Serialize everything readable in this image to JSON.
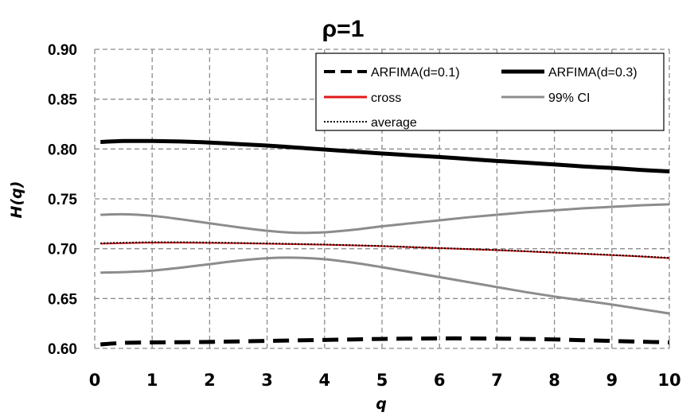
{
  "chart_data": {
    "type": "line",
    "title": "ρ=1",
    "xlabel": "q",
    "ylabel": "H(q)",
    "xlim": [
      0,
      10
    ],
    "ylim": [
      0.6,
      0.9
    ],
    "xticks": [
      "0",
      "1",
      "2",
      "3",
      "4",
      "5",
      "6",
      "7",
      "8",
      "9",
      "10"
    ],
    "yticks": [
      "0.60",
      "0.65",
      "0.70",
      "0.75",
      "0.80",
      "0.85",
      "0.90"
    ],
    "grid": true,
    "legend_position": "top-right",
    "x": [
      0.1,
      0.5,
      1,
      1.5,
      2,
      2.5,
      3,
      3.5,
      4,
      4.5,
      5,
      5.5,
      6,
      6.5,
      7,
      7.5,
      8,
      8.5,
      9,
      9.5,
      10
    ],
    "series": [
      {
        "name": "ARFIMA(d=0.1)",
        "color": "#000000",
        "style": "dash",
        "width": 5,
        "values": [
          0.604,
          0.6055,
          0.606,
          0.6062,
          0.6065,
          0.607,
          0.6075,
          0.608,
          0.6085,
          0.609,
          0.6095,
          0.6098,
          0.61,
          0.61,
          0.6098,
          0.6095,
          0.609,
          0.6082,
          0.6075,
          0.6067,
          0.606
        ]
      },
      {
        "name": "ARFIMA(d=0.3)",
        "color": "#000000",
        "style": "solid",
        "width": 5,
        "values": [
          0.807,
          0.808,
          0.808,
          0.8075,
          0.8065,
          0.805,
          0.8035,
          0.8015,
          0.7995,
          0.7975,
          0.7955,
          0.7937,
          0.792,
          0.79,
          0.788,
          0.7863,
          0.7845,
          0.7825,
          0.781,
          0.779,
          0.7775
        ]
      },
      {
        "name": "cross",
        "color": "#e01a1a",
        "style": "solid",
        "width": 2,
        "values": [
          0.705,
          0.7055,
          0.706,
          0.706,
          0.7058,
          0.7055,
          0.705,
          0.7045,
          0.704,
          0.7033,
          0.7025,
          0.7015,
          0.7005,
          0.6995,
          0.6985,
          0.6973,
          0.696,
          0.6948,
          0.6935,
          0.6922,
          0.6905
        ]
      },
      {
        "name": "99% CI",
        "color": "#8c8c8c",
        "style": "solid",
        "width": 3,
        "values": [
          0.734,
          0.7345,
          0.733,
          0.7295,
          0.7255,
          0.7215,
          0.718,
          0.716,
          0.7165,
          0.719,
          0.7225,
          0.7255,
          0.7285,
          0.7315,
          0.734,
          0.7365,
          0.7385,
          0.7405,
          0.742,
          0.7435,
          0.7445
        ]
      },
      {
        "name": "99% CI (lower)",
        "color": "#8c8c8c",
        "style": "solid",
        "width": 3,
        "in_legend": false,
        "values": [
          0.676,
          0.6765,
          0.678,
          0.681,
          0.6845,
          0.688,
          0.6905,
          0.691,
          0.6895,
          0.686,
          0.6815,
          0.6765,
          0.6715,
          0.6665,
          0.6615,
          0.6565,
          0.652,
          0.648,
          0.644,
          0.6395,
          0.635
        ]
      },
      {
        "name": "average",
        "color": "#000000",
        "style": "dot",
        "width": 2,
        "values": [
          0.7055,
          0.706,
          0.7065,
          0.7065,
          0.7062,
          0.7058,
          0.7053,
          0.7048,
          0.7042,
          0.7035,
          0.7027,
          0.7017,
          0.7007,
          0.6997,
          0.6987,
          0.6975,
          0.6962,
          0.695,
          0.6937,
          0.6924,
          0.6908
        ]
      }
    ],
    "legend": [
      {
        "name": "ARFIMA(d=0.1)",
        "color": "#000000",
        "style": "dash",
        "width": 4
      },
      {
        "name": "ARFIMA(d=0.3)",
        "color": "#000000",
        "style": "solid",
        "width": 5
      },
      {
        "name": "cross",
        "color": "#e01a1a",
        "style": "solid",
        "width": 3
      },
      {
        "name": "99% CI",
        "color": "#8c8c8c",
        "style": "solid",
        "width": 3
      },
      {
        "name": "average",
        "color": "#000000",
        "style": "dot",
        "width": 2
      }
    ]
  }
}
